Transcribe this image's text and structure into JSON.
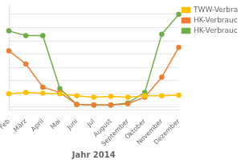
{
  "chart_data": {
    "type": "line",
    "xlabel": "Jahr 2014",
    "categories": [
      "Feb",
      "März",
      "April",
      "Mai",
      "Juni",
      "Jul",
      "August",
      "September",
      "Oktober",
      "November",
      "Dezember"
    ],
    "series": [
      {
        "name": "TWW-Verbrauch",
        "color": "#ffc000",
        "values": [
          20,
          22,
          21,
          20,
          17,
          15,
          16,
          15,
          17,
          17,
          18
        ]
      },
      {
        "name": "HK-Verbrauch [k",
        "color": "#ed7d31",
        "values": [
          85,
          65,
          30,
          22,
          4,
          3,
          3,
          5,
          15,
          45,
          90
        ]
      },
      {
        "name": "HK-Verbrauch, k",
        "color": "#70ad47",
        "values": [
          115,
          108,
          108,
          28,
          4,
          3,
          3,
          6,
          22,
          110,
          140
        ]
      }
    ],
    "marker": "circle",
    "ylim": [
      -5,
      155
    ],
    "yticks": [
      0,
      20,
      40,
      60,
      80,
      100,
      120,
      140
    ],
    "grid": true,
    "tick_labels": "x",
    "legend": "upper right"
  }
}
